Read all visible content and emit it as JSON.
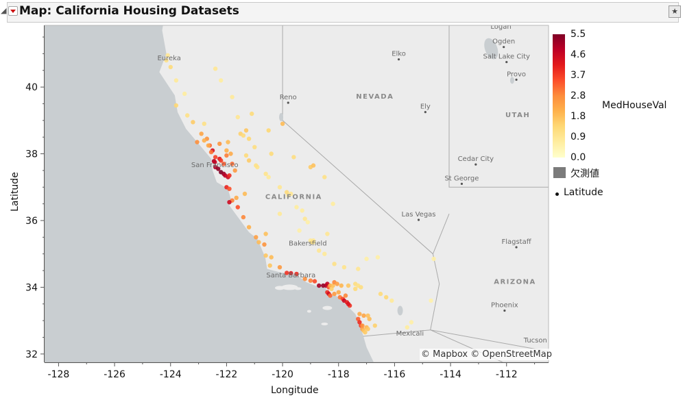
{
  "window": {
    "title": "Map: California Housing Datasets",
    "disclosure_icon": "triangle-down-icon",
    "menu_icon": "red-triangle-menu-icon",
    "pin_icon": "star-pin-icon"
  },
  "map": {
    "attribution": "© Mapbox © OpenStreetMap",
    "labels": [
      {
        "text": "Logan",
        "lon": -112.2,
        "lat": 41.75,
        "dot": false
      },
      {
        "text": "Ogden",
        "lon": -112.1,
        "lat": 41.2,
        "dot": true
      },
      {
        "text": "Salt Lake City",
        "lon": -112.0,
        "lat": 40.75,
        "dot": true
      },
      {
        "text": "Provo",
        "lon": -111.65,
        "lat": 40.22,
        "dot": true
      },
      {
        "text": "Elko",
        "lon": -115.85,
        "lat": 40.83,
        "dot": true
      },
      {
        "text": "NEVADA",
        "lon": -116.7,
        "lat": 39.65,
        "dot": false,
        "region": true
      },
      {
        "text": "UTAH",
        "lon": -111.6,
        "lat": 39.1,
        "dot": false,
        "region": true
      },
      {
        "text": "Eureka",
        "lon": -124.05,
        "lat": 40.8,
        "dot": false
      },
      {
        "text": "Reno",
        "lon": -119.8,
        "lat": 39.53,
        "dot": true
      },
      {
        "text": "Ely",
        "lon": -114.9,
        "lat": 39.25,
        "dot": true
      },
      {
        "text": "San Francisco",
        "lon": -122.42,
        "lat": 37.6,
        "dot": false
      },
      {
        "text": "CALIFORNIA",
        "lon": -119.6,
        "lat": 36.65,
        "dot": false,
        "region": true
      },
      {
        "text": "Cedar City",
        "lon": -113.1,
        "lat": 37.68,
        "dot": true
      },
      {
        "text": "St George",
        "lon": -113.6,
        "lat": 37.1,
        "dot": true
      },
      {
        "text": "Las Vegas",
        "lon": -115.14,
        "lat": 36.02,
        "dot": true
      },
      {
        "text": "Bakersfield",
        "lon": -119.1,
        "lat": 35.25,
        "dot": false
      },
      {
        "text": "Flagstaff",
        "lon": -111.65,
        "lat": 35.2,
        "dot": true
      },
      {
        "text": "ARIZONA",
        "lon": -111.7,
        "lat": 34.1,
        "dot": false,
        "region": true
      },
      {
        "text": "Santa Barbara",
        "lon": -119.7,
        "lat": 34.3,
        "dot": false
      },
      {
        "text": "Phoenix",
        "lon": -112.07,
        "lat": 33.3,
        "dot": true
      },
      {
        "text": "Mexicali",
        "lon": -115.45,
        "lat": 32.55,
        "dot": false
      },
      {
        "text": "Tucson",
        "lon": -110.97,
        "lat": 32.35,
        "dot": false
      }
    ]
  },
  "legend": {
    "title": "MedHouseVal",
    "ticks": [
      "5.5",
      "4.6",
      "3.7",
      "2.8",
      "1.8",
      "0.9",
      "0.0"
    ],
    "colors": [
      "#ffffcc",
      "#ffeda0",
      "#fed976",
      "#feb24c",
      "#fd8d3c",
      "#fc4e2a",
      "#e31a1c",
      "#bd0026",
      "#800026"
    ],
    "missing_label": "欠測値",
    "marker_label": "Latitude"
  },
  "chart_data": {
    "type": "scatter",
    "xlabel": "Longitude",
    "ylabel": "Latitude",
    "xlim": [
      -128.5,
      -110.5
    ],
    "ylim": [
      31.75,
      41.85
    ],
    "x_ticks": [
      -128,
      -126,
      -124,
      -122,
      -120,
      -118,
      -116,
      -114,
      -112
    ],
    "y_ticks": [
      32,
      34,
      36,
      38,
      40
    ],
    "x_tick_labels": [
      "-128",
      "-126",
      "-124",
      "-122",
      "-120",
      "-118",
      "-116",
      "-114",
      "-112"
    ],
    "y_tick_labels": [
      "32",
      "34",
      "36",
      "38",
      "40"
    ],
    "color_variable": "MedHouseVal",
    "color_range": [
      0.0,
      5.5
    ],
    "series": [
      {
        "name": "Latitude",
        "points": [
          [
            -124.15,
            40.8,
            1.1
          ],
          [
            -124.1,
            40.95,
            0.9
          ],
          [
            -124.0,
            40.6,
            1.3
          ],
          [
            -123.8,
            40.2,
            0.8
          ],
          [
            -123.5,
            39.8,
            0.7
          ],
          [
            -123.8,
            39.45,
            1.4
          ],
          [
            -123.4,
            39.15,
            1.1
          ],
          [
            -123.2,
            38.95,
            1.6
          ],
          [
            -122.9,
            38.6,
            2.3
          ],
          [
            -122.7,
            38.45,
            2.6
          ],
          [
            -122.6,
            38.25,
            3.2
          ],
          [
            -122.5,
            38.1,
            4.4
          ],
          [
            -122.4,
            37.9,
            3.6
          ],
          [
            -122.45,
            37.78,
            5.0
          ],
          [
            -122.42,
            37.75,
            4.7
          ],
          [
            -122.4,
            37.6,
            4.9
          ],
          [
            -122.3,
            37.55,
            5.3
          ],
          [
            -122.2,
            37.45,
            5.5
          ],
          [
            -122.1,
            37.4,
            5.2
          ],
          [
            -122.05,
            37.35,
            4.8
          ],
          [
            -121.95,
            37.3,
            4.6
          ],
          [
            -121.9,
            37.35,
            3.9
          ],
          [
            -122.25,
            37.85,
            4.2
          ],
          [
            -122.2,
            37.8,
            3.7
          ],
          [
            -122.1,
            37.7,
            3.3
          ],
          [
            -122.0,
            37.95,
            2.9
          ],
          [
            -121.8,
            37.7,
            3.1
          ],
          [
            -121.7,
            37.5,
            2.5
          ],
          [
            -122.0,
            37.0,
            4.0
          ],
          [
            -121.9,
            36.95,
            3.4
          ],
          [
            -121.8,
            36.6,
            2.9
          ],
          [
            -121.9,
            36.55,
            4.5
          ],
          [
            -121.65,
            36.68,
            2.2
          ],
          [
            -121.35,
            36.8,
            1.9
          ],
          [
            -121.5,
            38.6,
            1.5
          ],
          [
            -121.4,
            38.55,
            1.3
          ],
          [
            -121.3,
            38.7,
            1.7
          ],
          [
            -121.2,
            38.45,
            1.4
          ],
          [
            -121.0,
            38.2,
            1.2
          ],
          [
            -121.6,
            39.1,
            0.9
          ],
          [
            -121.8,
            39.7,
            0.8
          ],
          [
            -122.4,
            40.55,
            0.9
          ],
          [
            -122.2,
            40.2,
            0.7
          ],
          [
            -121.1,
            39.2,
            1.3
          ],
          [
            -120.5,
            38.7,
            1.4
          ],
          [
            -120.0,
            38.9,
            1.9
          ],
          [
            -120.4,
            38.0,
            1.3
          ],
          [
            -120.9,
            37.6,
            1.0
          ],
          [
            -120.5,
            37.3,
            0.8
          ],
          [
            -120.1,
            37.0,
            0.9
          ],
          [
            -119.8,
            36.75,
            0.8
          ],
          [
            -119.7,
            36.8,
            0.9
          ],
          [
            -119.5,
            36.4,
            0.7
          ],
          [
            -119.3,
            36.3,
            0.7
          ],
          [
            -119.1,
            35.95,
            0.6
          ],
          [
            -119.0,
            35.4,
            0.8
          ],
          [
            -118.9,
            35.35,
            0.7
          ],
          [
            -118.7,
            35.1,
            0.9
          ],
          [
            -119.4,
            35.7,
            0.6
          ],
          [
            -120.1,
            36.2,
            0.8
          ],
          [
            -120.6,
            35.6,
            1.8
          ],
          [
            -120.65,
            35.28,
            2.6
          ],
          [
            -120.4,
            34.9,
            1.9
          ],
          [
            -120.45,
            34.65,
            1.7
          ],
          [
            -119.85,
            34.43,
            3.8
          ],
          [
            -119.7,
            34.42,
            4.2
          ],
          [
            -119.5,
            34.4,
            3.9
          ],
          [
            -119.2,
            34.25,
            2.7
          ],
          [
            -119.0,
            34.2,
            2.9
          ],
          [
            -118.85,
            34.18,
            3.5
          ],
          [
            -118.7,
            34.05,
            5.1
          ],
          [
            -118.55,
            34.05,
            5.3
          ],
          [
            -118.45,
            34.05,
            5.0
          ],
          [
            -118.4,
            34.1,
            4.7
          ],
          [
            -118.35,
            34.0,
            3.4
          ],
          [
            -118.3,
            34.05,
            2.1
          ],
          [
            -118.25,
            33.95,
            1.5
          ],
          [
            -118.2,
            34.05,
            1.8
          ],
          [
            -118.15,
            34.15,
            2.8
          ],
          [
            -118.05,
            34.1,
            2.4
          ],
          [
            -118.4,
            33.85,
            3.9
          ],
          [
            -118.35,
            33.8,
            4.5
          ],
          [
            -118.3,
            33.75,
            3.2
          ],
          [
            -118.15,
            33.8,
            2.5
          ],
          [
            -118.0,
            33.85,
            2.2
          ],
          [
            -117.95,
            33.7,
            3.0
          ],
          [
            -117.85,
            33.65,
            3.6
          ],
          [
            -117.8,
            33.6,
            4.6
          ],
          [
            -117.7,
            33.55,
            4.1
          ],
          [
            -117.75,
            33.75,
            2.8
          ],
          [
            -117.9,
            34.05,
            2.0
          ],
          [
            -117.65,
            34.05,
            1.7
          ],
          [
            -117.4,
            34.1,
            1.2
          ],
          [
            -117.3,
            34.05,
            1.1
          ],
          [
            -117.2,
            34.0,
            1.2
          ],
          [
            -117.4,
            33.95,
            1.3
          ],
          [
            -117.25,
            33.2,
            2.2
          ],
          [
            -117.3,
            33.05,
            3.3
          ],
          [
            -117.25,
            32.95,
            3.9
          ],
          [
            -117.2,
            32.85,
            3.6
          ],
          [
            -117.15,
            32.75,
            2.4
          ],
          [
            -117.1,
            32.7,
            1.8
          ],
          [
            -117.05,
            32.65,
            1.6
          ],
          [
            -117.0,
            32.8,
            2.0
          ],
          [
            -116.95,
            32.75,
            1.7
          ],
          [
            -116.7,
            32.85,
            1.5
          ],
          [
            -116.9,
            33.05,
            1.9
          ],
          [
            -117.1,
            33.15,
            2.3
          ],
          [
            -116.5,
            33.8,
            1.3
          ],
          [
            -116.3,
            33.7,
            1.4
          ],
          [
            -116.1,
            33.6,
            0.8
          ],
          [
            -115.55,
            32.8,
            0.7
          ],
          [
            -115.4,
            32.95,
            0.6
          ],
          [
            -117.3,
            34.55,
            0.9
          ],
          [
            -117.8,
            34.6,
            1.0
          ],
          [
            -118.15,
            34.7,
            1.1
          ],
          [
            -117.0,
            34.85,
            0.6
          ],
          [
            -116.6,
            34.9,
            0.6
          ],
          [
            -114.6,
            34.85,
            0.6
          ],
          [
            -114.7,
            33.6,
            0.5
          ],
          [
            -118.5,
            35.0,
            0.8
          ],
          [
            -118.4,
            35.6,
            0.9
          ],
          [
            -118.2,
            36.5,
            0.7
          ],
          [
            -118.5,
            37.3,
            1.1
          ],
          [
            -119.0,
            37.6,
            1.6
          ],
          [
            -118.9,
            37.65,
            1.8
          ],
          [
            -119.6,
            37.9,
            1.2
          ],
          [
            -121.6,
            36.4,
            3.4
          ],
          [
            -121.4,
            36.1,
            2.8
          ],
          [
            -121.2,
            35.8,
            2.1
          ],
          [
            -120.95,
            35.5,
            2.4
          ],
          [
            -120.85,
            35.35,
            1.9
          ],
          [
            -120.6,
            34.95,
            1.7
          ],
          [
            -120.1,
            34.6,
            2.5
          ],
          [
            -122.8,
            38.9,
            1.1
          ],
          [
            -122.65,
            38.25,
            2.2
          ],
          [
            -122.55,
            38.05,
            3.0
          ],
          [
            -122.8,
            38.4,
            2.1
          ],
          [
            -123.05,
            38.35,
            2.7
          ],
          [
            -122.25,
            38.3,
            2.6
          ],
          [
            -121.95,
            38.35,
            1.9
          ],
          [
            -122.0,
            38.1,
            2.1
          ],
          [
            -121.85,
            38.0,
            2.2
          ],
          [
            -121.3,
            37.95,
            1.3
          ],
          [
            -121.2,
            37.8,
            1.6
          ],
          [
            -120.95,
            37.65,
            1.1
          ],
          [
            -120.6,
            37.4,
            1.0
          ],
          [
            -119.85,
            36.85,
            1.3
          ],
          [
            -119.2,
            36.05,
            0.9
          ],
          [
            -118.9,
            35.4,
            0.9
          ],
          [
            -118.95,
            35.35,
            1.1
          ],
          [
            -117.6,
            33.45,
            3.8
          ],
          [
            -117.65,
            33.5,
            4.3
          ],
          [
            -117.15,
            32.85,
            2.6
          ],
          [
            -116.95,
            33.15,
            1.8
          ]
        ]
      }
    ]
  }
}
